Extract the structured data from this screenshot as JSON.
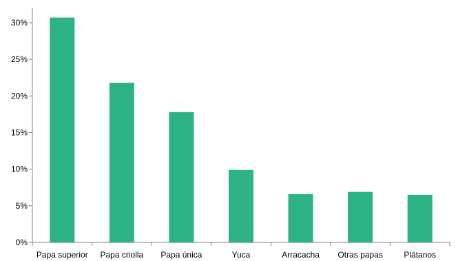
{
  "chart_data": {
    "type": "bar",
    "title": "",
    "xlabel": "",
    "ylabel": "",
    "categories": [
      "Papa superior",
      "Papa criolla",
      "Papa única",
      "Yuca",
      "Arracacha",
      "Otras papas",
      "Plátanos"
    ],
    "values": [
      30.7,
      21.8,
      17.8,
      9.9,
      6.6,
      6.9,
      6.5
    ],
    "unit": "%",
    "ylim": [
      0,
      30
    ],
    "yticks": [
      0,
      5,
      10,
      15,
      20,
      25,
      30
    ],
    "ytick_labels": [
      "0%",
      "5%",
      "10%",
      "15%",
      "20%",
      "25%",
      "30%"
    ],
    "grid": false,
    "legend": "none",
    "bar_color": "#2db285"
  }
}
